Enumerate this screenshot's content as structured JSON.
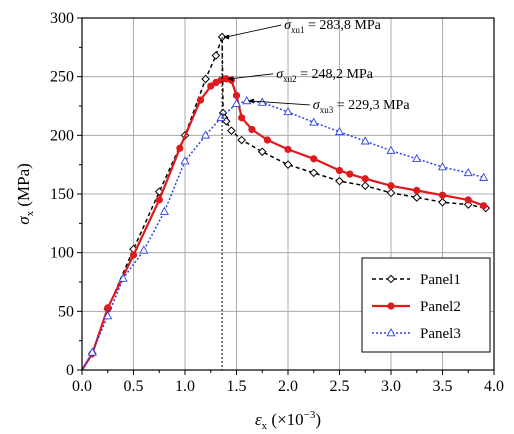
{
  "chart_data": {
    "type": "line",
    "xlabel": {
      "symbol": "ε",
      "subscript": "x",
      "rest": " (×10",
      "superscript": "−3",
      "close": ")"
    },
    "ylabel": {
      "symbol": "σ",
      "subscript": "x",
      "rest": " (MPa)"
    },
    "xlim": [
      0,
      4
    ],
    "ylim": [
      0,
      300
    ],
    "xticks": [
      "0.0",
      "0.5",
      "1.0",
      "1.5",
      "2.0",
      "2.5",
      "3.0",
      "3.5",
      "4.0"
    ],
    "yticks": [
      "0",
      "50",
      "100",
      "150",
      "200",
      "250",
      "300"
    ],
    "grid": true,
    "legend_position": "bottom-right",
    "series": [
      {
        "name": "Panel1",
        "color": "#000000",
        "line_style": "dashed",
        "marker": "diamond",
        "x": [
          0,
          0.1,
          0.25,
          0.5,
          0.75,
          1.0,
          1.2,
          1.3,
          1.36,
          1.37,
          1.38,
          1.4,
          1.45,
          1.55,
          1.75,
          2.0,
          2.25,
          2.5,
          2.75,
          3.0,
          3.25,
          3.5,
          3.75,
          3.92
        ],
        "y": [
          0,
          14,
          52,
          103,
          152,
          200,
          248,
          268,
          283.8,
          219,
          215,
          212,
          204,
          196,
          186,
          175,
          168,
          161,
          157,
          151,
          147,
          143,
          141,
          138
        ]
      },
      {
        "name": "Panel2",
        "color": "#e0191c",
        "line_style": "solid",
        "marker": "circle",
        "x": [
          0,
          0.1,
          0.25,
          0.5,
          0.75,
          0.95,
          1.15,
          1.25,
          1.3,
          1.35,
          1.4,
          1.45,
          1.5,
          1.55,
          1.65,
          1.8,
          2.0,
          2.25,
          2.5,
          2.6,
          2.75,
          3.0,
          3.25,
          3.5,
          3.75,
          3.9
        ],
        "y": [
          0,
          14,
          53,
          98,
          145,
          189,
          230,
          242,
          245,
          247,
          248.2,
          247,
          234,
          215,
          205,
          196,
          188,
          180,
          170,
          167,
          163,
          157,
          153,
          149,
          145,
          140
        ]
      },
      {
        "name": "Panel3",
        "color": "#2c43e8",
        "line_style": "dotted",
        "marker": "triangle",
        "x": [
          0,
          0.1,
          0.25,
          0.4,
          0.6,
          0.8,
          1.0,
          1.2,
          1.35,
          1.5,
          1.6,
          1.75,
          2.0,
          2.25,
          2.5,
          2.75,
          3.0,
          3.25,
          3.5,
          3.75,
          3.9
        ],
        "y": [
          0,
          15,
          46,
          78,
          102,
          135,
          178,
          200,
          215,
          227,
          229.3,
          228,
          220,
          211,
          203,
          195,
          187,
          180,
          173,
          168,
          164
        ]
      }
    ],
    "annotations": [
      {
        "symbol": "σ",
        "subscript": "xu1",
        "value": " = 283,8 MPa",
        "x": 1.36,
        "y": 283.8
      },
      {
        "symbol": "σ",
        "subscript": "xu2",
        "value": " = 248,2 MPa",
        "x": 1.4,
        "y": 248.2
      },
      {
        "symbol": "σ",
        "subscript": "xu3",
        "value": " = 229,3 MPa",
        "x": 1.6,
        "y": 229.3
      }
    ]
  }
}
